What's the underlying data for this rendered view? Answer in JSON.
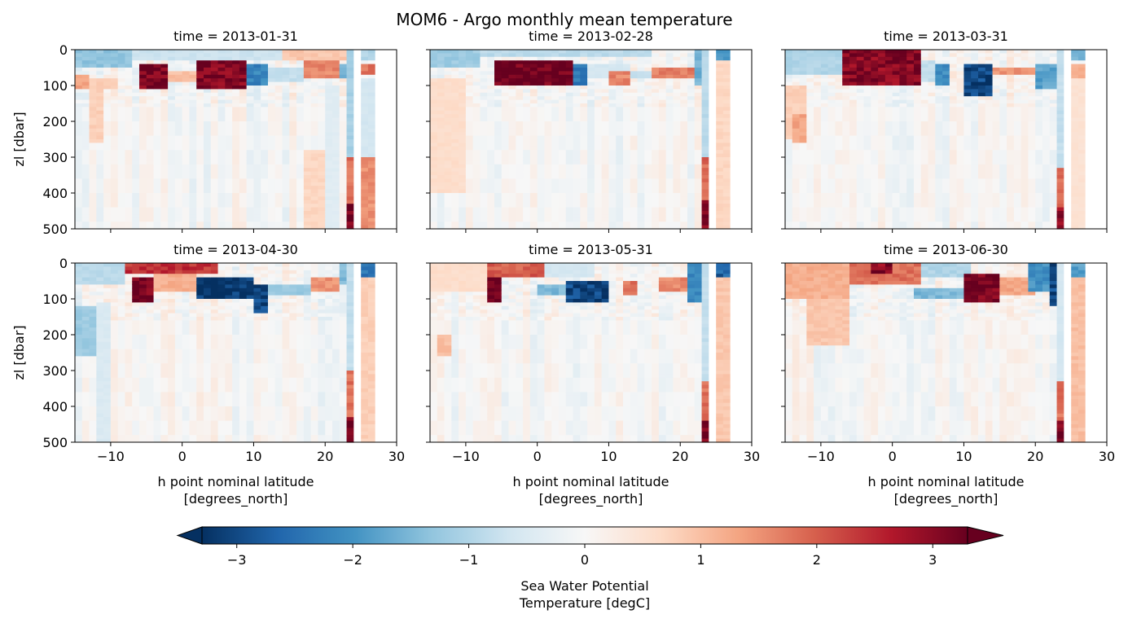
{
  "title": "MOM6 - Argo monthly mean temperature",
  "chart_data": {
    "type": "heatmap",
    "title": "MOM6 - Argo monthly mean temperature",
    "xlabel": "h point nominal latitude\n[degrees_north]",
    "ylabel": "zl [dbar]",
    "xlim": [
      -15,
      30
    ],
    "ylim": [
      500,
      0
    ],
    "y_inverted": true,
    "xticks": [
      -10,
      0,
      10,
      20,
      30
    ],
    "yticks": [
      0,
      100,
      200,
      300,
      400,
      500
    ],
    "grid": false,
    "cmap": "RdBu_r",
    "vmin": -3.3,
    "vmax": 3.3,
    "colorbar": {
      "label": "Sea Water Potential\nTemperature [degC]",
      "ticks": [
        -3,
        -2,
        -1,
        0,
        1,
        2,
        3
      ],
      "extend": "both",
      "orientation": "horizontal"
    },
    "panels": [
      {
        "title": "time = 2013-01-31",
        "features": [
          {
            "x": [
              -15,
              -7
            ],
            "y": [
              0,
              50
            ],
            "v": -1.3
          },
          {
            "x": [
              -7,
              14
            ],
            "y": [
              0,
              30
            ],
            "v": -0.7
          },
          {
            "x": [
              14,
              23
            ],
            "y": [
              0,
              30
            ],
            "v": 0.9
          },
          {
            "x": [
              -15,
              -13
            ],
            "y": [
              65,
              110
            ],
            "v": 1.3
          },
          {
            "x": [
              -13,
              -9
            ],
            "y": [
              75,
              110
            ],
            "v": 0.8
          },
          {
            "x": [
              -6,
              -2
            ],
            "y": [
              40,
              105
            ],
            "v": 3.2
          },
          {
            "x": [
              -2,
              2
            ],
            "y": [
              60,
              85
            ],
            "v": 1.0
          },
          {
            "x": [
              2,
              9
            ],
            "y": [
              30,
              110
            ],
            "v": 3.1
          },
          {
            "x": [
              9,
              12
            ],
            "y": [
              40,
              100
            ],
            "v": -2.2
          },
          {
            "x": [
              12,
              17
            ],
            "y": [
              50,
              85
            ],
            "v": -0.8
          },
          {
            "x": [
              17,
              22
            ],
            "y": [
              30,
              75
            ],
            "v": 1.6
          },
          {
            "x": [
              22,
              23
            ],
            "y": [
              40,
              80
            ],
            "v": -1.5
          },
          {
            "x": [
              -13,
              -11
            ],
            "y": [
              110,
              260
            ],
            "v": 0.8
          },
          {
            "x": [
              17,
              20
            ],
            "y": [
              280,
              500
            ],
            "v": 0.7
          },
          {
            "x": [
              20,
              22
            ],
            "y": [
              100,
              500
            ],
            "v": -0.4
          },
          {
            "x": [
              23,
              24
            ],
            "y": [
              0,
              300
            ],
            "v": -1.1
          },
          {
            "x": [
              23,
              24
            ],
            "y": [
              300,
              430
            ],
            "v": 1.8
          },
          {
            "x": [
              23,
              24
            ],
            "y": [
              430,
              500
            ],
            "v": 3.2
          },
          {
            "x": [
              25,
              27
            ],
            "y": [
              0,
              30
            ],
            "v": -1.0
          },
          {
            "x": [
              25,
              27
            ],
            "y": [
              40,
              70
            ],
            "v": 1.8
          },
          {
            "x": [
              25,
              27
            ],
            "y": [
              80,
              300
            ],
            "v": -0.6
          },
          {
            "x": [
              25,
              27
            ],
            "y": [
              300,
              500
            ],
            "v": 1.5
          }
        ]
      },
      {
        "title": "time = 2013-02-28",
        "features": [
          {
            "x": [
              -15,
              -8
            ],
            "y": [
              0,
              45
            ],
            "v": -1.2
          },
          {
            "x": [
              -8,
              16
            ],
            "y": [
              0,
              20
            ],
            "v": -0.9
          },
          {
            "x": [
              -6,
              5
            ],
            "y": [
              25,
              100
            ],
            "v": 3.3
          },
          {
            "x": [
              5,
              7
            ],
            "y": [
              40,
              100
            ],
            "v": -2.4
          },
          {
            "x": [
              7,
              13
            ],
            "y": [
              40,
              80
            ],
            "v": -0.6
          },
          {
            "x": [
              10,
              13
            ],
            "y": [
              60,
              100
            ],
            "v": 1.6
          },
          {
            "x": [
              13,
              16
            ],
            "y": [
              60,
              80
            ],
            "v": -0.8
          },
          {
            "x": [
              16,
              22
            ],
            "y": [
              50,
              80
            ],
            "v": 1.7
          },
          {
            "x": [
              -15,
              -12
            ],
            "y": [
              150,
              260
            ],
            "v": 1.3
          },
          {
            "x": [
              -15,
              -10
            ],
            "y": [
              80,
              400
            ],
            "v": 0.6
          },
          {
            "x": [
              22,
              23
            ],
            "y": [
              0,
              100
            ],
            "v": -1.6
          },
          {
            "x": [
              23,
              24
            ],
            "y": [
              0,
              300
            ],
            "v": -0.9
          },
          {
            "x": [
              23,
              24
            ],
            "y": [
              300,
              420
            ],
            "v": 1.9
          },
          {
            "x": [
              23,
              24
            ],
            "y": [
              420,
              500
            ],
            "v": 3.2
          },
          {
            "x": [
              25,
              27
            ],
            "y": [
              0,
              30
            ],
            "v": -1.8
          },
          {
            "x": [
              25,
              27
            ],
            "y": [
              30,
              500
            ],
            "v": 0.7
          }
        ]
      },
      {
        "title": "time = 2013-03-31",
        "features": [
          {
            "x": [
              -15,
              -6
            ],
            "y": [
              0,
              70
            ],
            "v": -1.0
          },
          {
            "x": [
              -7,
              4
            ],
            "y": [
              0,
              100
            ],
            "v": 3.0
          },
          {
            "x": [
              -1,
              2
            ],
            "y": [
              0,
              20
            ],
            "v": 3.3
          },
          {
            "x": [
              4,
              6
            ],
            "y": [
              30,
              90
            ],
            "v": -0.8
          },
          {
            "x": [
              6,
              8
            ],
            "y": [
              40,
              100
            ],
            "v": -2.0
          },
          {
            "x": [
              10,
              14
            ],
            "y": [
              40,
              130
            ],
            "v": -3.0
          },
          {
            "x": [
              14,
              20
            ],
            "y": [
              45,
              70
            ],
            "v": 1.5
          },
          {
            "x": [
              20,
              23
            ],
            "y": [
              40,
              110
            ],
            "v": -1.8
          },
          {
            "x": [
              -15,
              -12
            ],
            "y": [
              100,
              250
            ],
            "v": 0.8
          },
          {
            "x": [
              -14,
              -12
            ],
            "y": [
              180,
              260
            ],
            "v": 1.3
          },
          {
            "x": [
              23,
              24
            ],
            "y": [
              0,
              330
            ],
            "v": -0.8
          },
          {
            "x": [
              23,
              24
            ],
            "y": [
              330,
              440
            ],
            "v": 1.8
          },
          {
            "x": [
              23,
              24
            ],
            "y": [
              440,
              500
            ],
            "v": 3.0
          },
          {
            "x": [
              25,
              27
            ],
            "y": [
              0,
              30
            ],
            "v": -1.6
          },
          {
            "x": [
              25,
              27
            ],
            "y": [
              40,
              80
            ],
            "v": 1.2
          },
          {
            "x": [
              25,
              27
            ],
            "y": [
              80,
              500
            ],
            "v": 0.5
          }
        ]
      },
      {
        "title": "time = 2013-04-30",
        "features": [
          {
            "x": [
              -15,
              -8
            ],
            "y": [
              0,
              60
            ],
            "v": -0.9
          },
          {
            "x": [
              -8,
              5
            ],
            "y": [
              0,
              25
            ],
            "v": 2.4
          },
          {
            "x": [
              -7,
              -4
            ],
            "y": [
              40,
              110
            ],
            "v": 3.2
          },
          {
            "x": [
              -4,
              2
            ],
            "y": [
              30,
              80
            ],
            "v": 1.2
          },
          {
            "x": [
              2,
              10
            ],
            "y": [
              40,
              100
            ],
            "v": -3.2
          },
          {
            "x": [
              10,
              12
            ],
            "y": [
              60,
              140
            ],
            "v": -3.0
          },
          {
            "x": [
              12,
              18
            ],
            "y": [
              60,
              90
            ],
            "v": -1.2
          },
          {
            "x": [
              18,
              22
            ],
            "y": [
              40,
              80
            ],
            "v": 1.5
          },
          {
            "x": [
              22,
              23
            ],
            "y": [
              0,
              60
            ],
            "v": -1.5
          },
          {
            "x": [
              -15,
              -12
            ],
            "y": [
              120,
              260
            ],
            "v": -1.2
          },
          {
            "x": [
              -12,
              -10
            ],
            "y": [
              110,
              500
            ],
            "v": -0.5
          },
          {
            "x": [
              23,
              24
            ],
            "y": [
              0,
              300
            ],
            "v": -0.8
          },
          {
            "x": [
              23,
              24
            ],
            "y": [
              300,
              430
            ],
            "v": 1.8
          },
          {
            "x": [
              23,
              24
            ],
            "y": [
              430,
              500
            ],
            "v": 3.2
          },
          {
            "x": [
              25,
              27
            ],
            "y": [
              0,
              40
            ],
            "v": -2.5
          },
          {
            "x": [
              25,
              27
            ],
            "y": [
              40,
              500
            ],
            "v": 0.8
          }
        ]
      },
      {
        "title": "time = 2013-05-31",
        "features": [
          {
            "x": [
              -15,
              -7
            ],
            "y": [
              0,
              80
            ],
            "v": 0.6
          },
          {
            "x": [
              -7,
              1
            ],
            "y": [
              0,
              40
            ],
            "v": 2.0
          },
          {
            "x": [
              -7,
              -5
            ],
            "y": [
              40,
              110
            ],
            "v": 3.2
          },
          {
            "x": [
              1,
              8
            ],
            "y": [
              0,
              40
            ],
            "v": -0.6
          },
          {
            "x": [
              4,
              10
            ],
            "y": [
              50,
              110
            ],
            "v": -3.0
          },
          {
            "x": [
              0,
              4
            ],
            "y": [
              60,
              90
            ],
            "v": -1.5
          },
          {
            "x": [
              12,
              14
            ],
            "y": [
              50,
              90
            ],
            "v": 1.8
          },
          {
            "x": [
              17,
              21
            ],
            "y": [
              40,
              80
            ],
            "v": 1.6
          },
          {
            "x": [
              21,
              23
            ],
            "y": [
              0,
              110
            ],
            "v": -2.2
          },
          {
            "x": [
              -14,
              -12
            ],
            "y": [
              200,
              260
            ],
            "v": 1.0
          },
          {
            "x": [
              23,
              24
            ],
            "y": [
              0,
              330
            ],
            "v": -0.8
          },
          {
            "x": [
              23,
              24
            ],
            "y": [
              330,
              440
            ],
            "v": 1.8
          },
          {
            "x": [
              23,
              24
            ],
            "y": [
              440,
              500
            ],
            "v": 3.2
          },
          {
            "x": [
              25,
              27
            ],
            "y": [
              0,
              40
            ],
            "v": -2.7
          },
          {
            "x": [
              25,
              27
            ],
            "y": [
              40,
              500
            ],
            "v": 0.9
          }
        ]
      },
      {
        "title": "time = 2013-06-30",
        "features": [
          {
            "x": [
              -15,
              -6
            ],
            "y": [
              0,
              100
            ],
            "v": 1.2
          },
          {
            "x": [
              -6,
              4
            ],
            "y": [
              0,
              60
            ],
            "v": 1.8
          },
          {
            "x": [
              -3,
              0
            ],
            "y": [
              0,
              30
            ],
            "v": 3.0
          },
          {
            "x": [
              -12,
              -6
            ],
            "y": [
              100,
              230
            ],
            "v": 0.9
          },
          {
            "x": [
              4,
              11
            ],
            "y": [
              0,
              40
            ],
            "v": -1.0
          },
          {
            "x": [
              3,
              10
            ],
            "y": [
              70,
              100
            ],
            "v": -1.5
          },
          {
            "x": [
              10,
              15
            ],
            "y": [
              30,
              110
            ],
            "v": 3.2
          },
          {
            "x": [
              15,
              20
            ],
            "y": [
              40,
              90
            ],
            "v": 1.3
          },
          {
            "x": [
              19,
              23
            ],
            "y": [
              0,
              80
            ],
            "v": -2.0
          },
          {
            "x": [
              22,
              23
            ],
            "y": [
              0,
              120
            ],
            "v": -3.0
          },
          {
            "x": [
              23,
              24
            ],
            "y": [
              0,
              330
            ],
            "v": -0.6
          },
          {
            "x": [
              23,
              24
            ],
            "y": [
              330,
              440
            ],
            "v": 1.8
          },
          {
            "x": [
              23,
              24
            ],
            "y": [
              440,
              500
            ],
            "v": 3.2
          },
          {
            "x": [
              25,
              27
            ],
            "y": [
              0,
              40
            ],
            "v": -1.8
          },
          {
            "x": [
              25,
              27
            ],
            "y": [
              40,
              500
            ],
            "v": 1.0
          }
        ]
      }
    ]
  }
}
